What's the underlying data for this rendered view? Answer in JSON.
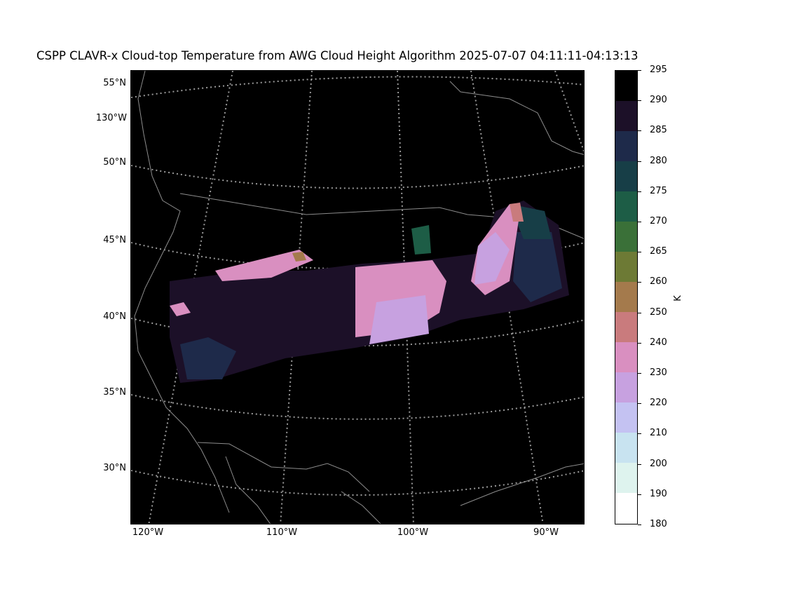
{
  "title": "CSPP CLAVR-x Cloud-top Temperature from AWG Cloud Height Algorithm 2025-07-07 04:11:11-04:13:13",
  "lat_labels": [
    "55°N",
    "50°N",
    "45°N",
    "40°N",
    "35°N",
    "30°N"
  ],
  "lon_labels_left": [
    "130°W"
  ],
  "lon_labels_bottom": [
    "120°W",
    "110°W",
    "100°W",
    "90°W"
  ],
  "colorbar": {
    "unit": "K",
    "ticks": [
      "295",
      "290",
      "285",
      "280",
      "275",
      "270",
      "265",
      "260",
      "250",
      "240",
      "230",
      "220",
      "210",
      "200",
      "190",
      "180"
    ],
    "segment_colors": [
      "#000000",
      "#1c1028",
      "#1e2a4a",
      "#173e47",
      "#1d5d46",
      "#3a7038",
      "#6d7a35",
      "#a47a4c",
      "#c97b7d",
      "#d98fc0",
      "#c7a1e0",
      "#c4c2f2",
      "#c8e3f0",
      "#def3ee",
      "#ffffff"
    ]
  },
  "colors": {
    "map_background": "#000000",
    "coastline": "#8c8c8c",
    "gridline": "#9a9a9a"
  }
}
